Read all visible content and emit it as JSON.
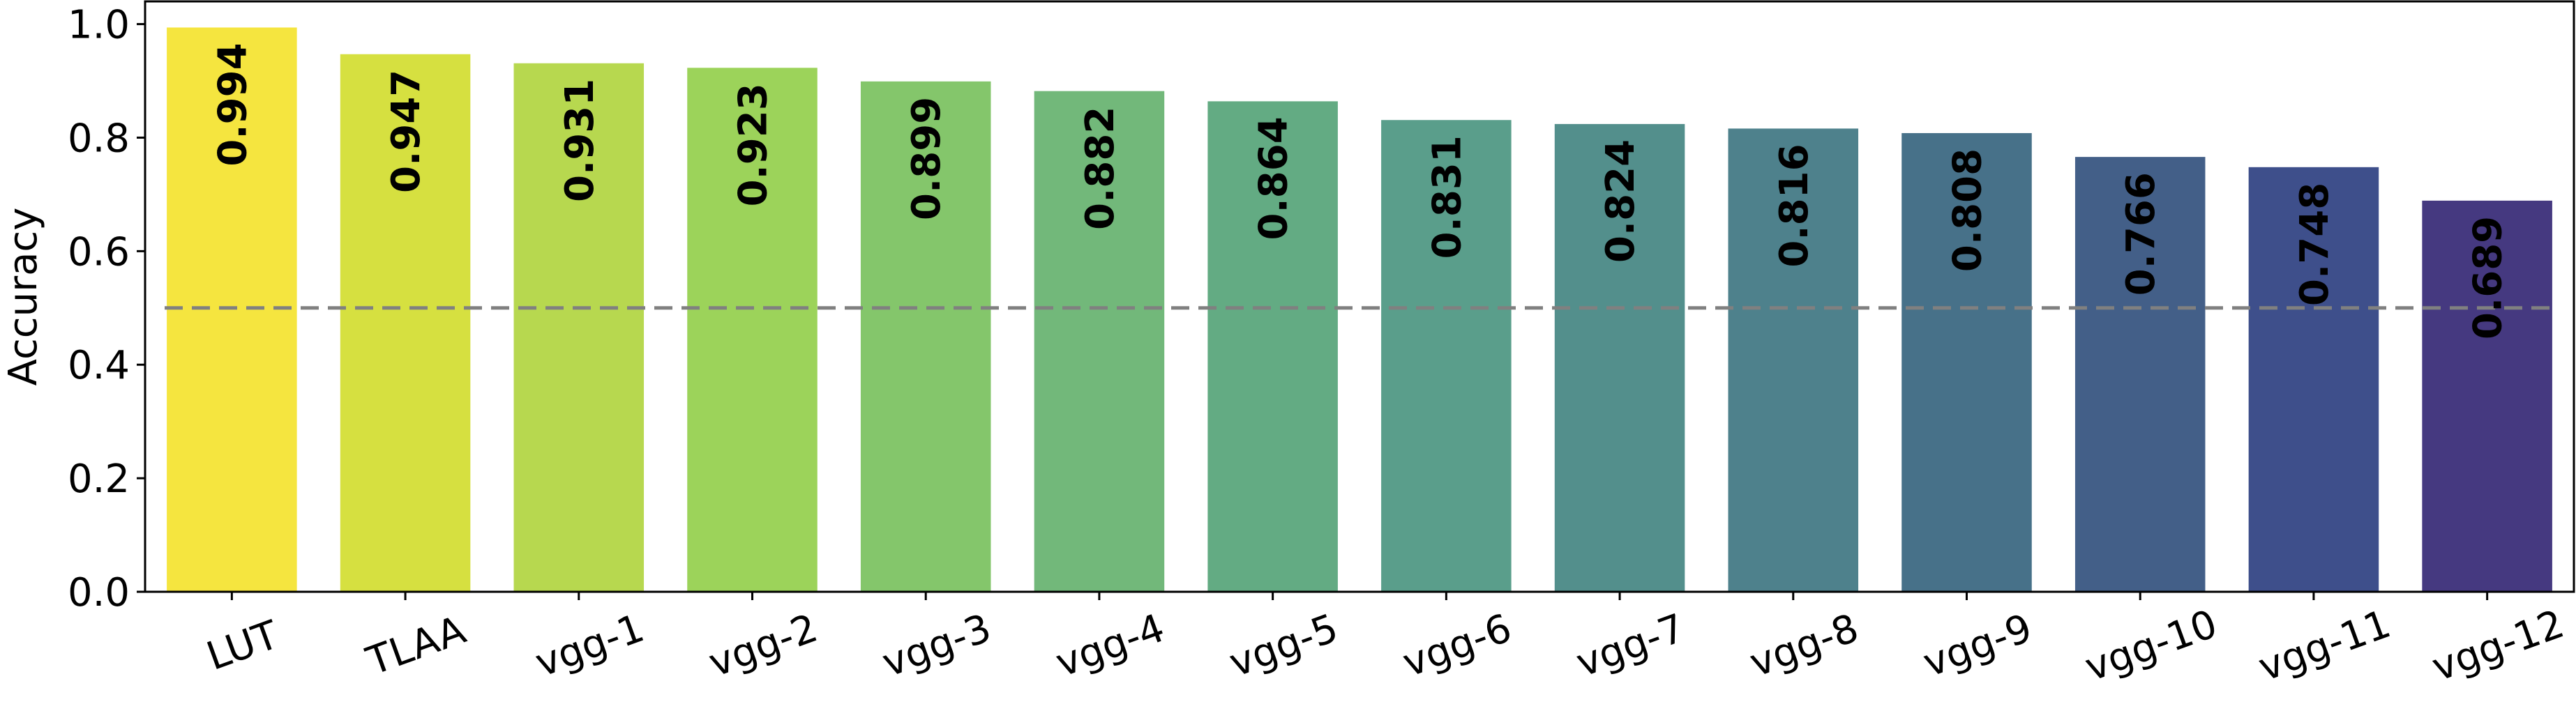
{
  "chart_data": {
    "type": "bar",
    "categories": [
      "LUT",
      "TLAA",
      "vgg-1",
      "vgg-2",
      "vgg-3",
      "vgg-4",
      "vgg-5",
      "vgg-6",
      "vgg-7",
      "vgg-8",
      "vgg-9",
      "vgg-10",
      "vgg-11",
      "vgg-12"
    ],
    "values": [
      0.994,
      0.947,
      0.931,
      0.923,
      0.899,
      0.882,
      0.864,
      0.831,
      0.824,
      0.816,
      0.808,
      0.766,
      0.748,
      0.689
    ],
    "value_labels": [
      "0.994",
      "0.947",
      "0.931",
      "0.923",
      "0.899",
      "0.882",
      "0.864",
      "0.831",
      "0.824",
      "0.816",
      "0.808",
      "0.766",
      "0.748",
      "0.689"
    ],
    "bar_colors": [
      "#f5e53f",
      "#d6e040",
      "#b7d84f",
      "#9cd35a",
      "#84c66b",
      "#72b87a",
      "#63ab83",
      "#5a9e8b",
      "#538f8c",
      "#4e818c",
      "#477189",
      "#435f88",
      "#3e4f8b",
      "#453980"
    ],
    "title": "",
    "xlabel": "",
    "ylabel": "Accuracy",
    "ylim": [
      0,
      1.04
    ],
    "yticks": [
      "0.0",
      "0.2",
      "0.4",
      "0.6",
      "0.8",
      "1.0"
    ],
    "ytick_values": [
      0.0,
      0.2,
      0.4,
      0.6,
      0.8,
      1.0
    ],
    "reference_line": {
      "value": 0.5,
      "style": "dashed",
      "color": "#808080"
    },
    "grid": false,
    "xtick_rotation_deg": 20
  }
}
